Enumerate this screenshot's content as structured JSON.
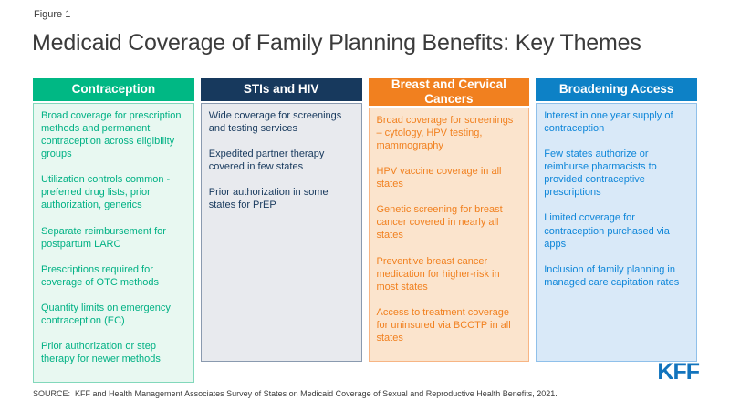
{
  "figure_label": "Figure 1",
  "title": "Medicaid Coverage of Family Planning Benefits: Key Themes",
  "columns": [
    {
      "header": "Contraception",
      "header_color": "#00B884",
      "body_bg": "#E8F8F1",
      "border_color": "#82D8BB",
      "text_color": "#00B184",
      "items": [
        "Broad coverage for prescription methods and permanent contraception across eligibility groups",
        "Utilization controls common - preferred drug lists, prior authorization, generics",
        "Separate reimbursement for postpartum LARC",
        "Prescriptions required for coverage of OTC methods",
        "Quantity limits on emergency contraception (EC)",
        "Prior authorization or step therapy for newer methods"
      ]
    },
    {
      "header": "STIs and HIV",
      "header_color": "#17395D",
      "body_bg": "#E8EAEE",
      "border_color": "#8A9AAF",
      "text_color": "#17395D",
      "items": [
        "Wide coverage for screenings and testing services",
        "Expedited partner therapy covered in few states",
        "Prior authorization in some states for PrEP"
      ]
    },
    {
      "header": "Breast and Cervical Cancers",
      "header_color": "#F1801F",
      "body_bg": "#FBE4CD",
      "border_color": "#F7B584",
      "text_color": "#F1801F",
      "items": [
        "Broad coverage for screenings – cytology, HPV testing, mammography",
        "HPV vaccine coverage in all states",
        "Genetic screening for breast cancer covered in nearly all states",
        "Preventive breast cancer medication for higher-risk in most states",
        "Access to treatment coverage for uninsured via BCCTP in all states"
      ]
    },
    {
      "header": "Broadening Access",
      "header_color": "#0D81C6",
      "body_bg": "#D9E9F8",
      "border_color": "#8FC0EA",
      "text_color": "#0E86D9",
      "items": [
        "Interest in one year supply of contraception",
        "Few states authorize or reimburse pharmacists to provided contraceptive prescriptions",
        "Limited coverage for contraception purchased via apps",
        "Inclusion of family planning in managed care capitation rates"
      ]
    }
  ],
  "logo_text": "KFF",
  "logo_color": "#1274BD",
  "source": "SOURCE:  KFF and Health Management Associates Survey of States on Medicaid Coverage of Sexual and Reproductive Health Benefits, 2021."
}
